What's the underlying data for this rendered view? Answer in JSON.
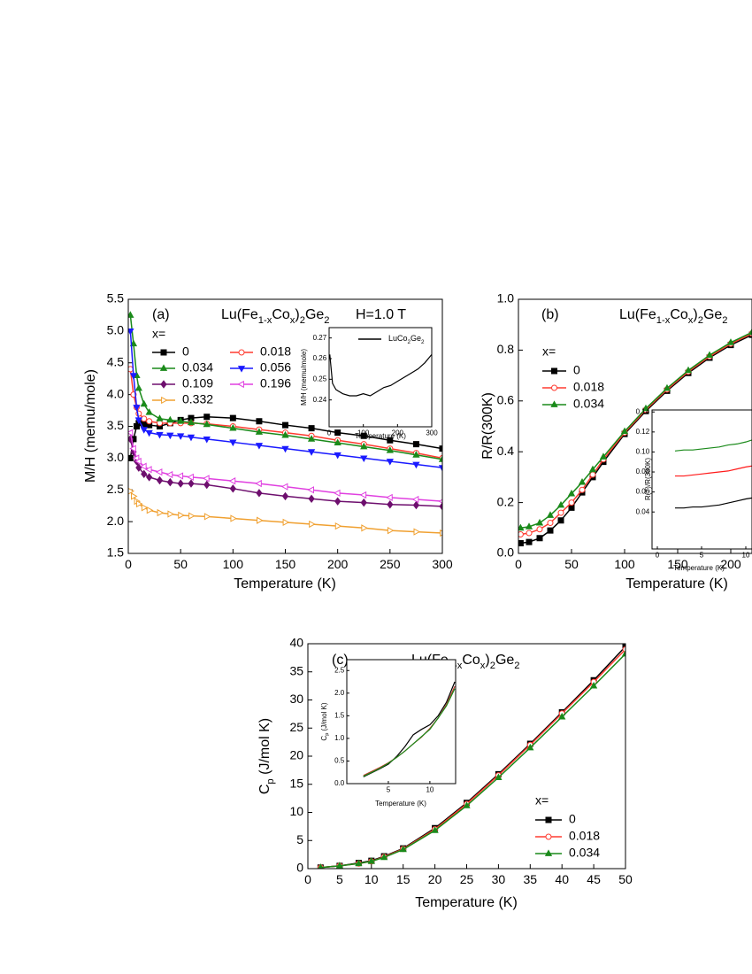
{
  "chart_data": [
    {
      "type": "scatter",
      "label": "(a)",
      "title": [
        "Lu(Fe",
        "1-x",
        "Co",
        "x",
        ")",
        "2",
        "Ge",
        "2"
      ],
      "annotation": "H=1.0 T",
      "legend_title": "x=",
      "x_label": "Temperature (K)",
      "y_label": "M/H (memu/mole)",
      "markers": true,
      "xlim": [
        0,
        300
      ],
      "ylim": [
        1.5,
        5.5
      ],
      "xticks": [
        0,
        50,
        100,
        150,
        200,
        250,
        300
      ],
      "yticks": [
        1.5,
        {
          "value": 2,
          "label": "2.0"
        },
        2.5,
        {
          "value": 3,
          "label": "3.0"
        },
        3.5,
        {
          "value": 4,
          "label": "4.0"
        },
        4.5,
        {
          "value": 5,
          "label": "5.0"
        },
        5.5
      ],
      "x": [
        2,
        5,
        8,
        10,
        15,
        20,
        30,
        40,
        50,
        60,
        75,
        100,
        125,
        150,
        175,
        200,
        225,
        250,
        275,
        300
      ],
      "series": [
        {
          "name": "0",
          "color": "#000000",
          "marker": "square",
          "filled": true,
          "values": [
            3.0,
            3.3,
            3.5,
            3.55,
            3.53,
            3.52,
            3.5,
            3.55,
            3.6,
            3.63,
            3.65,
            3.63,
            3.58,
            3.52,
            3.47,
            3.4,
            3.35,
            3.28,
            3.22,
            3.15
          ]
        },
        {
          "name": "0.018",
          "color": "#ff3b30",
          "marker": "circle",
          "filled": false,
          "values": [
            4.4,
            4.0,
            3.8,
            3.7,
            3.62,
            3.58,
            3.55,
            3.55,
            3.55,
            3.55,
            3.54,
            3.5,
            3.45,
            3.4,
            3.35,
            3.28,
            3.22,
            3.15,
            3.08,
            3.0
          ]
        },
        {
          "name": "0.034",
          "color": "#1a8a1a",
          "marker": "triangle-up",
          "filled": true,
          "values": [
            5.25,
            4.8,
            4.3,
            4.1,
            3.85,
            3.72,
            3.62,
            3.6,
            3.58,
            3.56,
            3.53,
            3.47,
            3.41,
            3.36,
            3.3,
            3.24,
            3.18,
            3.12,
            3.05,
            2.98
          ]
        },
        {
          "name": "0.056",
          "color": "#1a1aff",
          "marker": "triangle-down",
          "filled": true,
          "values": [
            5.0,
            4.3,
            3.8,
            3.6,
            3.45,
            3.4,
            3.37,
            3.36,
            3.35,
            3.33,
            3.3,
            3.25,
            3.2,
            3.15,
            3.1,
            3.05,
            3.0,
            2.95,
            2.9,
            2.85
          ]
        },
        {
          "name": "0.109",
          "color": "#6e0f6e",
          "marker": "diamond",
          "filled": true,
          "values": [
            3.3,
            3.1,
            2.95,
            2.85,
            2.75,
            2.7,
            2.65,
            2.62,
            2.6,
            2.6,
            2.58,
            2.52,
            2.45,
            2.4,
            2.36,
            2.32,
            2.3,
            2.27,
            2.26,
            2.24
          ]
        },
        {
          "name": "0.196",
          "color": "#e040e0",
          "marker": "triangle-left",
          "filled": false,
          "values": [
            3.4,
            3.15,
            3.0,
            2.95,
            2.87,
            2.82,
            2.78,
            2.74,
            2.72,
            2.7,
            2.68,
            2.64,
            2.6,
            2.55,
            2.5,
            2.45,
            2.42,
            2.38,
            2.35,
            2.32
          ]
        },
        {
          "name": "0.332",
          "color": "#f0a030",
          "marker": "triangle-right",
          "filled": false,
          "values": [
            2.48,
            2.4,
            2.32,
            2.28,
            2.22,
            2.18,
            2.14,
            2.12,
            2.1,
            2.09,
            2.08,
            2.05,
            2.02,
            1.99,
            1.96,
            1.93,
            1.9,
            1.86,
            1.84,
            1.82
          ]
        }
      ]
    },
    {
      "type": "line",
      "x_label": "Temperature (K)",
      "y_label": "M/H (memu/mole)",
      "markers": false,
      "xlim": [
        0,
        300
      ],
      "ylim": [
        0.227,
        0.275
      ],
      "xticks": [
        0,
        100,
        200,
        300
      ],
      "yticks": [
        0.24,
        0.25,
        0.26,
        0.27
      ],
      "x": [
        2,
        10,
        20,
        40,
        60,
        80,
        100,
        120,
        140,
        160,
        180,
        200,
        220,
        240,
        260,
        280,
        300
      ],
      "series": [
        {
          "name": [
            "LuCo",
            "2",
            "Ge",
            "2"
          ],
          "color": "#000000",
          "values": [
            0.262,
            0.248,
            0.245,
            0.243,
            0.242,
            0.242,
            0.243,
            0.242,
            0.244,
            0.246,
            0.247,
            0.249,
            0.251,
            0.253,
            0.255,
            0.258,
            0.262
          ]
        }
      ]
    },
    {
      "type": "scatter",
      "label": "(b)",
      "title": [
        "Lu(Fe",
        "1-x",
        "Co",
        "x",
        ")",
        "2",
        "Ge",
        "2"
      ],
      "legend_title": "x=",
      "x_label": "Temperature (K)",
      "y_label": "R/R(300K)",
      "markers": true,
      "xlim": [
        0,
        220
      ],
      "ylim": [
        0,
        1
      ],
      "xticks": [
        0,
        50,
        100,
        150,
        200
      ],
      "yticks": [
        {
          "value": 0,
          "label": "0.0"
        },
        0.2,
        0.4,
        0.6,
        0.8,
        {
          "value": 1,
          "label": "1.0"
        }
      ],
      "x": [
        2,
        10,
        20,
        30,
        40,
        50,
        60,
        70,
        80,
        100,
        120,
        140,
        160,
        180,
        200,
        220
      ],
      "series": [
        {
          "name": "0",
          "color": "#000000",
          "marker": "square",
          "filled": true,
          "values": [
            0.04,
            0.045,
            0.06,
            0.09,
            0.13,
            0.18,
            0.24,
            0.3,
            0.36,
            0.47,
            0.56,
            0.64,
            0.71,
            0.77,
            0.82,
            0.86
          ]
        },
        {
          "name": "0.018",
          "color": "#ff3b30",
          "marker": "circle",
          "filled": false,
          "values": [
            0.075,
            0.08,
            0.095,
            0.12,
            0.16,
            0.2,
            0.25,
            0.31,
            0.37,
            0.475,
            0.565,
            0.645,
            0.715,
            0.775,
            0.825,
            0.865
          ]
        },
        {
          "name": "0.034",
          "color": "#1a8a1a",
          "marker": "triangle-up",
          "filled": true,
          "values": [
            0.1,
            0.105,
            0.12,
            0.15,
            0.19,
            0.235,
            0.28,
            0.33,
            0.38,
            0.48,
            0.57,
            0.65,
            0.72,
            0.78,
            0.83,
            0.87
          ]
        }
      ]
    },
    {
      "type": "line",
      "x_label": "Temperature (K)",
      "y_label": "R(T)/R(300K)",
      "markers": false,
      "xlim": [
        -0.6,
        10.7
      ],
      "ylim": [
        0.003,
        0.142
      ],
      "xticks": [
        0,
        5,
        10
      ],
      "yticks": [
        0.04,
        0.06,
        0.08,
        {
          "value": 0.1,
          "label": "0.10"
        },
        0.12,
        0.14
      ],
      "x": [
        2,
        3,
        4,
        5,
        6,
        7,
        8,
        9,
        10,
        10.7
      ],
      "series": [
        {
          "color": "#000000",
          "values": [
            0.044,
            0.044,
            0.045,
            0.045,
            0.046,
            0.047,
            0.049,
            0.051,
            0.053,
            0.054
          ]
        },
        {
          "color": "#ff1a1a",
          "values": [
            0.076,
            0.076,
            0.077,
            0.078,
            0.079,
            0.08,
            0.081,
            0.083,
            0.085,
            0.086
          ]
        },
        {
          "color": "#1a8a1a",
          "values": [
            0.101,
            0.102,
            0.102,
            0.103,
            0.104,
            0.105,
            0.107,
            0.108,
            0.11,
            0.112
          ]
        }
      ]
    },
    {
      "type": "scatter",
      "label": "(c)",
      "title": [
        "Lu(Fe",
        "1-x",
        "Co",
        "x",
        ")",
        "2",
        "Ge",
        "2"
      ],
      "legend_title": "x=",
      "x_label": "Temperature (K)",
      "y_label": [
        "C",
        "p",
        " (J/mol K)"
      ],
      "markers": true,
      "xlim": [
        0,
        50
      ],
      "ylim": [
        0,
        40
      ],
      "xticks": [
        0,
        5,
        10,
        15,
        20,
        25,
        30,
        35,
        40,
        45,
        50
      ],
      "yticks": [
        0,
        5,
        10,
        15,
        20,
        25,
        30,
        35,
        40
      ],
      "x": [
        2,
        5,
        8,
        10,
        12,
        15,
        20,
        25,
        30,
        35,
        40,
        45,
        50
      ],
      "series": [
        {
          "name": "0",
          "color": "#000000",
          "marker": "square",
          "filled": true,
          "values": [
            0.2,
            0.5,
            1.0,
            1.4,
            2.2,
            3.6,
            7.2,
            11.7,
            16.8,
            22.2,
            27.8,
            33.5,
            39.5
          ]
        },
        {
          "name": "0.018",
          "color": "#ff3b30",
          "marker": "circle",
          "filled": false,
          "values": [
            0.2,
            0.5,
            0.9,
            1.3,
            2.1,
            3.5,
            7.0,
            11.5,
            16.6,
            22.0,
            27.6,
            33.2,
            39.0
          ]
        },
        {
          "name": "0.034",
          "color": "#1a8a1a",
          "marker": "triangle-up",
          "filled": true,
          "values": [
            0.2,
            0.5,
            0.9,
            1.3,
            2.0,
            3.4,
            6.8,
            11.2,
            16.2,
            21.5,
            27.0,
            32.5,
            38.2
          ]
        }
      ]
    },
    {
      "type": "line",
      "x_label": "Temperature (K)",
      "y_label": [
        "C",
        "p",
        " (J/mol K)"
      ],
      "markers": false,
      "xlim": [
        0,
        13.1
      ],
      "ylim": [
        0,
        2.74
      ],
      "xticks": [
        5,
        10
      ],
      "yticks": [
        {
          "value": 0,
          "label": "0.0"
        },
        0.5,
        {
          "value": 1,
          "label": "1.0"
        },
        1.5,
        {
          "value": 2,
          "label": "2.0"
        },
        2.5
      ],
      "x": [
        2,
        4,
        5,
        6,
        7,
        8,
        9,
        10,
        11,
        12,
        13
      ],
      "series": [
        {
          "color": "#000000",
          "values": [
            0.15,
            0.33,
            0.43,
            0.6,
            0.82,
            1.08,
            1.2,
            1.3,
            1.5,
            1.8,
            2.25
          ]
        },
        {
          "color": "#c0392b",
          "values": [
            0.18,
            0.36,
            0.46,
            0.58,
            0.72,
            0.88,
            1.03,
            1.22,
            1.45,
            1.75,
            2.15
          ]
        },
        {
          "color": "#1a8a1a",
          "values": [
            0.16,
            0.34,
            0.45,
            0.58,
            0.72,
            0.88,
            1.04,
            1.2,
            1.45,
            1.72,
            2.1
          ]
        }
      ]
    }
  ]
}
